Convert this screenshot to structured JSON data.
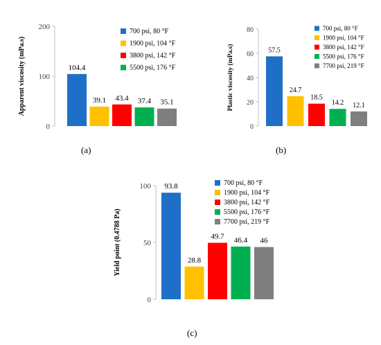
{
  "colors": {
    "blue": "#1f6fc8",
    "yellow": "#ffc000",
    "red": "#ff0000",
    "green": "#00b050",
    "gray": "#7f7f7f",
    "axis": "#bfbfbf",
    "tick_text": "#404040"
  },
  "chart_data": [
    {
      "panel": "(a)",
      "type": "bar",
      "ylabel": "Apparent viscosity (mPa.s)",
      "ylim": [
        0,
        200
      ],
      "yticks": [
        0,
        100,
        200
      ],
      "grid": false,
      "legend_position": "top-right",
      "series": [
        {
          "name": "700 psi, 80 °F",
          "value": 104.4,
          "label": "104.4",
          "color": "#1f6fc8"
        },
        {
          "name": "1900 psi, 104 °F",
          "value": 39.1,
          "label": "39.1",
          "color": "#ffc000"
        },
        {
          "name": "3800 psi, 142 °F",
          "value": 43.4,
          "label": "43.4",
          "color": "#ff0000"
        },
        {
          "name": "5500 psi, 176 °F",
          "value": 37.4,
          "label": "37.4",
          "color": "#00b050"
        },
        {
          "name": "",
          "value": 35.1,
          "label": "35.1",
          "color": "#7f7f7f"
        }
      ]
    },
    {
      "panel": "(b)",
      "type": "bar",
      "ylabel": "Plastic viscosity (mPa.s)",
      "ylim": [
        0,
        80
      ],
      "yticks": [
        0,
        20,
        40,
        60,
        80
      ],
      "grid": false,
      "legend_position": "top-right",
      "series": [
        {
          "name": "700 psi, 80 °F",
          "value": 57.5,
          "label": "57.5",
          "color": "#1f6fc8"
        },
        {
          "name": "1900 psi, 104 °F",
          "value": 24.7,
          "label": "24.7",
          "color": "#ffc000"
        },
        {
          "name": "3800 psi, 142 °F",
          "value": 18.5,
          "label": "18.5",
          "color": "#ff0000"
        },
        {
          "name": "5500 psi, 176 °F",
          "value": 14.2,
          "label": "14.2",
          "color": "#00b050"
        },
        {
          "name": "7700 psi, 219 °F",
          "value": 12.1,
          "label": "12.1",
          "color": "#7f7f7f"
        }
      ]
    },
    {
      "panel": "(c)",
      "type": "bar",
      "ylabel": "Yield point (0.4788 Pa)",
      "ylim": [
        0,
        100
      ],
      "yticks": [
        0,
        50,
        100
      ],
      "grid": false,
      "legend_position": "top-right",
      "series": [
        {
          "name": "700 psi, 80 °F",
          "value": 93.8,
          "label": "93.8",
          "color": "#1f6fc8"
        },
        {
          "name": "1900 psi, 104 °F",
          "value": 28.8,
          "label": "28.8",
          "color": "#ffc000"
        },
        {
          "name": "3800 psi, 142 °F",
          "value": 49.7,
          "label": "49.7",
          "color": "#ff0000"
        },
        {
          "name": "5500 psi, 176 °F",
          "value": 46.4,
          "label": "46.4",
          "color": "#00b050"
        },
        {
          "name": "7700 psi, 219 °F",
          "value": 46,
          "label": "46",
          "color": "#7f7f7f"
        }
      ]
    }
  ]
}
